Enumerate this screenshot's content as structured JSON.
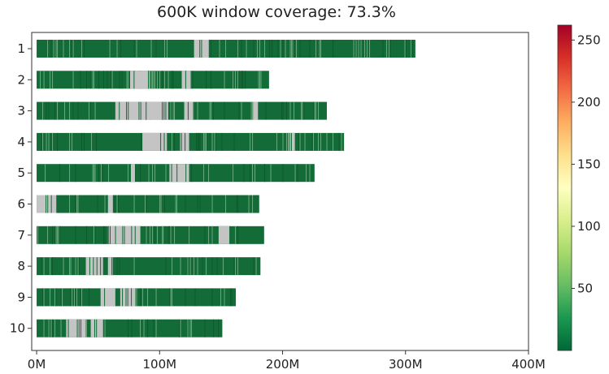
{
  "chart_data": {
    "type": "heatmap",
    "title": "600K window coverage: 73.3%",
    "xlabel": "",
    "ylabel": "",
    "xlim": [
      -4,
      400
    ],
    "x_ticks": [
      {
        "value": 0,
        "label": "0M"
      },
      {
        "value": 100,
        "label": "100M"
      },
      {
        "value": 200,
        "label": "200M"
      },
      {
        "value": 300,
        "label": "300M"
      },
      {
        "value": 400,
        "label": "400M"
      }
    ],
    "categories": [
      "1",
      "2",
      "3",
      "4",
      "5",
      "6",
      "7",
      "8",
      "9",
      "10"
    ],
    "chromosome_lengths_mb": [
      308,
      189,
      236,
      250,
      226,
      181,
      185,
      182,
      162,
      151
    ],
    "low_coverage_gaps_mb": [
      [
        [
          128,
          140
        ]
      ],
      [
        [
          76,
          92
        ],
        [
          118,
          126
        ]
      ],
      [
        [
          64,
          107
        ],
        [
          120,
          128
        ],
        [
          176,
          180
        ]
      ],
      [
        [
          86,
          106
        ],
        [
          116,
          124
        ],
        [
          204,
          210
        ]
      ],
      [
        [
          76,
          80
        ],
        [
          108,
          124
        ]
      ],
      [
        [
          0,
          16
        ],
        [
          58,
          62
        ]
      ],
      [
        [
          58,
          84
        ],
        [
          148,
          157
        ]
      ],
      [
        [
          40,
          54
        ],
        [
          58,
          62
        ]
      ],
      [
        [
          52,
          64
        ],
        [
          68,
          80
        ]
      ],
      [
        [
          24,
          40
        ],
        [
          44,
          54
        ]
      ]
    ],
    "colorbar": {
      "colormap": "RdYlGn_r",
      "min": 0,
      "max": 262,
      "ticks": [
        50,
        100,
        150,
        200,
        250
      ]
    },
    "colors": {
      "window_fill": "#136b37",
      "stripe_dark": "#0e5a2c",
      "stripe_light": "#6aa87c",
      "gap_fill": "#c4c4c4"
    },
    "grid": false,
    "legend": "none"
  }
}
